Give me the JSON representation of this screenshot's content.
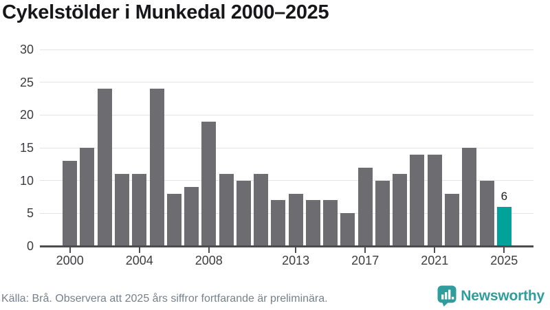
{
  "page": {
    "title": "Cykelstölder i Munkedal 2000–2025"
  },
  "chart_data": {
    "type": "bar",
    "title": "Cykelstölder i Munkedal 2000–2025",
    "x": [
      2000,
      2001,
      2002,
      2003,
      2004,
      2005,
      2006,
      2007,
      2008,
      2009,
      2010,
      2011,
      2012,
      2013,
      2014,
      2015,
      2016,
      2017,
      2018,
      2019,
      2020,
      2021,
      2022,
      2023,
      2024,
      2025
    ],
    "values": [
      13,
      15,
      24,
      11,
      11,
      24,
      8,
      9,
      19,
      11,
      10,
      11,
      7,
      8,
      7,
      7,
      5,
      12,
      10,
      11,
      14,
      14,
      8,
      15,
      10,
      6
    ],
    "ylim": [
      0,
      30
    ],
    "yticks": [
      0,
      5,
      10,
      15,
      20,
      25,
      30
    ],
    "xticks": [
      2000,
      2004,
      2008,
      2013,
      2017,
      2021,
      2025
    ],
    "grid": true,
    "legend": "none",
    "bar_color": "#6d6c71",
    "axis_color": "#4c4c50",
    "grid_color": "#e3e3e3",
    "highlight": {
      "year": 2025,
      "value": 6,
      "label": "6",
      "color": "#00a29a"
    }
  },
  "footer": {
    "source_note": "Källa: Brå. Observera att 2025 års siffror fortfarande är preliminära."
  },
  "branding": {
    "name": "Newsworthy",
    "logo_color": "#2f9d9d",
    "logo_icon": "bar-chart-speech-bubble-icon"
  }
}
